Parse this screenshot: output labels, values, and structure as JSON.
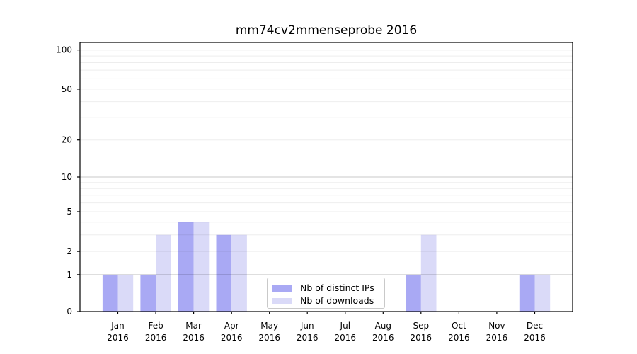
{
  "chart_data": {
    "type": "bar",
    "title": "mm74cv2mmenseprobe 2016",
    "categories": [
      "Jan",
      "Feb",
      "Mar",
      "Apr",
      "May",
      "Jun",
      "Jul",
      "Aug",
      "Sep",
      "Oct",
      "Nov",
      "Dec"
    ],
    "x_sub_label": "2016",
    "series": [
      {
        "name": "Nb of distinct IPs",
        "color": "#a9a9f4",
        "values": [
          1,
          1,
          4,
          3,
          0,
          0,
          0,
          0,
          1,
          0,
          0,
          1
        ]
      },
      {
        "name": "Nb of downloads",
        "color": "#dadaf8",
        "values": [
          1,
          3,
          4,
          3,
          0,
          0,
          0,
          0,
          3,
          0,
          0,
          1
        ]
      }
    ],
    "y_axis": {
      "scale": "log(1+value)",
      "tick_labels": [
        0,
        1,
        2,
        5,
        10,
        20,
        50,
        100
      ],
      "decade_gridlines": [
        1,
        10,
        100
      ],
      "minor_gridlines": [
        2,
        3,
        4,
        5,
        6,
        7,
        8,
        9,
        20,
        30,
        40,
        50,
        60,
        70,
        80,
        90
      ],
      "ylim_top": 100
    },
    "legend": {
      "position": "lower center"
    },
    "colors": {
      "spine": "#000000",
      "decade_grid": "rgba(0,0,0,0.21)",
      "minor_grid": "rgba(0,0,0,0.07)",
      "text": "#000000"
    }
  }
}
